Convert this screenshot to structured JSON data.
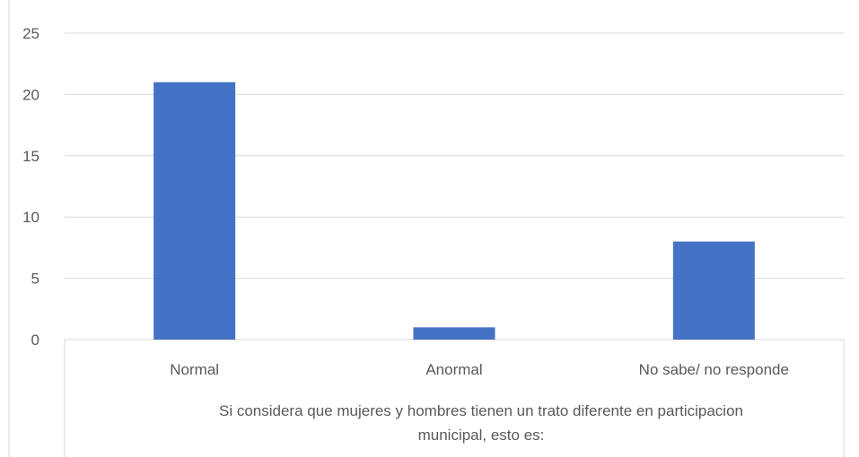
{
  "chart_data": {
    "type": "bar",
    "categories": [
      "Normal",
      "Anormal",
      "No sabe/ no responde"
    ],
    "values": [
      21,
      1,
      8
    ],
    "ylim": [
      0,
      25
    ],
    "yticks": [
      "0",
      "5",
      "10",
      "15",
      "20",
      "25"
    ],
    "xlabel": [
      "Si considera que mujeres y hombres tienen un trato diferente en participacion",
      "municipal, esto es:"
    ],
    "ylabel": "",
    "title": "",
    "grid": true,
    "legend": "none",
    "colors": {
      "bar": "#4472C4",
      "grid": "#D9D9D9",
      "axis_line": "#D9D9D9",
      "text": "#595959"
    }
  }
}
